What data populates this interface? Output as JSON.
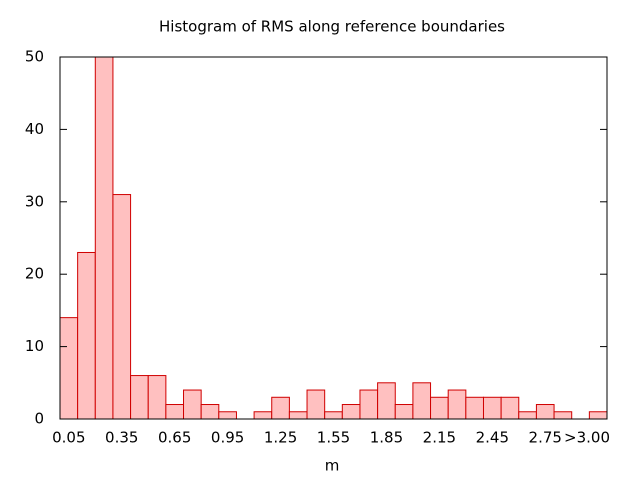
{
  "chart_data": {
    "type": "bar",
    "title": "Histogram of RMS along reference boundaries",
    "x_label": "m",
    "categories": [
      "0.05",
      null,
      null,
      "0.35",
      null,
      null,
      "0.65",
      null,
      null,
      "0.95",
      null,
      null,
      "1.25",
      null,
      null,
      "1.55",
      null,
      null,
      "1.85",
      null,
      null,
      "2.15",
      null,
      null,
      "2.45",
      null,
      null,
      "2.75",
      null,
      null,
      ">3.00"
    ],
    "values": [
      14,
      23,
      50,
      31,
      6,
      6,
      2,
      4,
      2,
      1,
      0,
      1,
      3,
      1,
      4,
      1,
      2,
      4,
      5,
      2,
      5,
      3,
      4,
      3,
      3,
      3,
      1,
      2,
      1,
      0,
      1
    ],
    "color": "#ffc0c0",
    "edge_color": "#d00000",
    "ylim": [
      0,
      50
    ],
    "yticks": [
      0,
      10,
      20,
      30,
      40,
      50
    ],
    "grid": false
  }
}
